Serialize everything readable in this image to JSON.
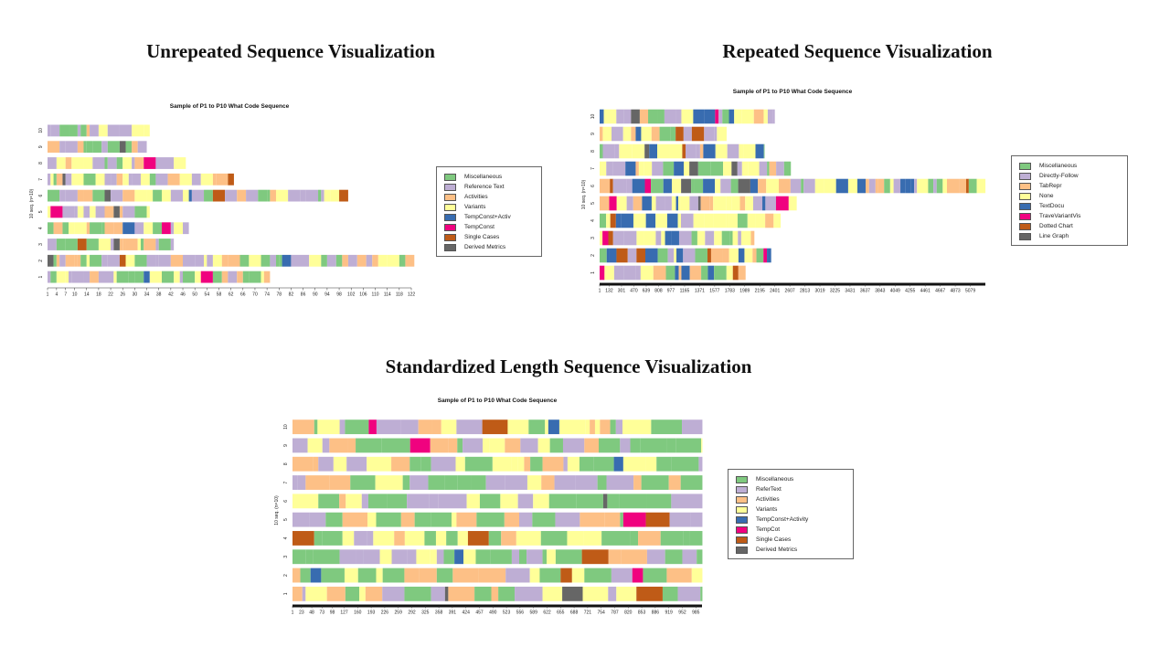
{
  "titles": {
    "unrepeated": "Unrepeated Sequence Visualization",
    "repeated": "Repeated Sequence Visualization",
    "standardized": "Standardized Length Sequence Visualization"
  },
  "legends": {
    "unrepeated": [
      {
        "label": "Miscellaneous",
        "color": "#7fc97f"
      },
      {
        "label": "Reference Text",
        "color": "#beaed4"
      },
      {
        "label": "Activities",
        "color": "#fdc086"
      },
      {
        "label": "Variants",
        "color": "#ffff99"
      },
      {
        "label": "TempConst+Activ",
        "color": "#386cb0"
      },
      {
        "label": "TempConst",
        "color": "#f0027f"
      },
      {
        "label": "Single Cases",
        "color": "#bf5b17"
      },
      {
        "label": "Derived Metrics",
        "color": "#666666"
      }
    ],
    "repeated": [
      {
        "label": "Miscellaneous",
        "color": "#7fc97f"
      },
      {
        "label": "Directly-Follow",
        "color": "#beaed4"
      },
      {
        "label": "TabRepr",
        "color": "#fdc086"
      },
      {
        "label": "None",
        "color": "#ffff99"
      },
      {
        "label": "TextDocu",
        "color": "#386cb0"
      },
      {
        "label": "TraveVariantVis",
        "color": "#f0027f"
      },
      {
        "label": "Dotted Chart",
        "color": "#bf5b17"
      },
      {
        "label": "Line Graph",
        "color": "#666666"
      }
    ],
    "standardized": [
      {
        "label": "Miscellaneous",
        "color": "#7fc97f"
      },
      {
        "label": "ReferText",
        "color": "#beaed4"
      },
      {
        "label": "Activities",
        "color": "#fdc086"
      },
      {
        "label": "Variants",
        "color": "#ffff99"
      },
      {
        "label": "TempConst+Activity",
        "color": "#386cb0"
      },
      {
        "label": "TempCot",
        "color": "#f0027f"
      },
      {
        "label": "Single Cases",
        "color": "#bf5b17"
      },
      {
        "label": "Derived Metrics",
        "color": "#666666"
      }
    ]
  },
  "chart_data": [
    {
      "type": "sequence-index-plot",
      "title": "Sample of P1 to P10 What Code Sequence",
      "ylabel": "10 seq. (n=10)",
      "categories": [
        "1",
        "2",
        "3",
        "4",
        "5",
        "6",
        "7",
        "8",
        "9",
        "10"
      ],
      "xlim": [
        1,
        122
      ],
      "xticks": [
        "1",
        "4",
        "7",
        "10",
        "14",
        "18",
        "22",
        "26",
        "30",
        "34",
        "38",
        "42",
        "46",
        "50",
        "54",
        "58",
        "62",
        "66",
        "70",
        "74",
        "78",
        "82",
        "86",
        "90",
        "94",
        "98",
        "102",
        "106",
        "110",
        "114",
        "118",
        "122"
      ],
      "lengths": [
        74,
        122,
        42,
        47,
        34,
        100,
        62,
        46,
        33,
        34
      ],
      "states": [
        "Miscellaneous",
        "Reference Text",
        "Activities",
        "Variants",
        "TempConst+Activ",
        "TempConst",
        "Single Cases",
        "Derived Metrics"
      ],
      "grid": false,
      "legend": "right"
    },
    {
      "type": "sequence-index-plot",
      "title": "Sample of P1 to P10 What Code Sequence",
      "ylabel": "10 seq. (n=10)",
      "categories": [
        "1",
        "2",
        "3",
        "4",
        "5",
        "6",
        "7",
        "8",
        "9",
        "10"
      ],
      "xlim": [
        1,
        5285
      ],
      "xticks": [
        "1",
        "132",
        "301",
        "470",
        "639",
        "808",
        "977",
        "1165",
        "1371",
        "1577",
        "1783",
        "1989",
        "2195",
        "2401",
        "2607",
        "2813",
        "3019",
        "3225",
        "3431",
        "3637",
        "3843",
        "4049",
        "4255",
        "4461",
        "4667",
        "4873",
        "5079"
      ],
      "lengths": [
        2000,
        2350,
        2120,
        2480,
        2700,
        5285,
        2620,
        2260,
        1740,
        2400
      ],
      "states": [
        "Miscellaneous",
        "Directly-Follow",
        "TabRepr",
        "None",
        "TextDocu",
        "TraveVariantVis",
        "Dotted Chart",
        "Line Graph"
      ],
      "grid": false,
      "legend": "right"
    },
    {
      "type": "sequence-index-plot",
      "title": "Sample of P1 to P10 What Code Sequence",
      "ylabel": "10 seq. (n=10)",
      "categories": [
        "1",
        "2",
        "3",
        "4",
        "5",
        "6",
        "7",
        "8",
        "9",
        "10"
      ],
      "xlim": [
        1,
        1000
      ],
      "xticks": [
        "1",
        "23",
        "48",
        "73",
        "98",
        "127",
        "160",
        "193",
        "226",
        "259",
        "292",
        "325",
        "358",
        "391",
        "424",
        "457",
        "490",
        "523",
        "556",
        "589",
        "622",
        "655",
        "688",
        "721",
        "754",
        "787",
        "820",
        "853",
        "886",
        "919",
        "952",
        "985"
      ],
      "lengths": [
        1000,
        1000,
        1000,
        1000,
        1000,
        1000,
        1000,
        1000,
        1000,
        1000
      ],
      "states": [
        "Miscellaneous",
        "ReferText",
        "Activities",
        "Variants",
        "TempConst+Activity",
        "TempCot",
        "Single Cases",
        "Derived Metrics"
      ],
      "grid": false,
      "legend": "right"
    }
  ]
}
